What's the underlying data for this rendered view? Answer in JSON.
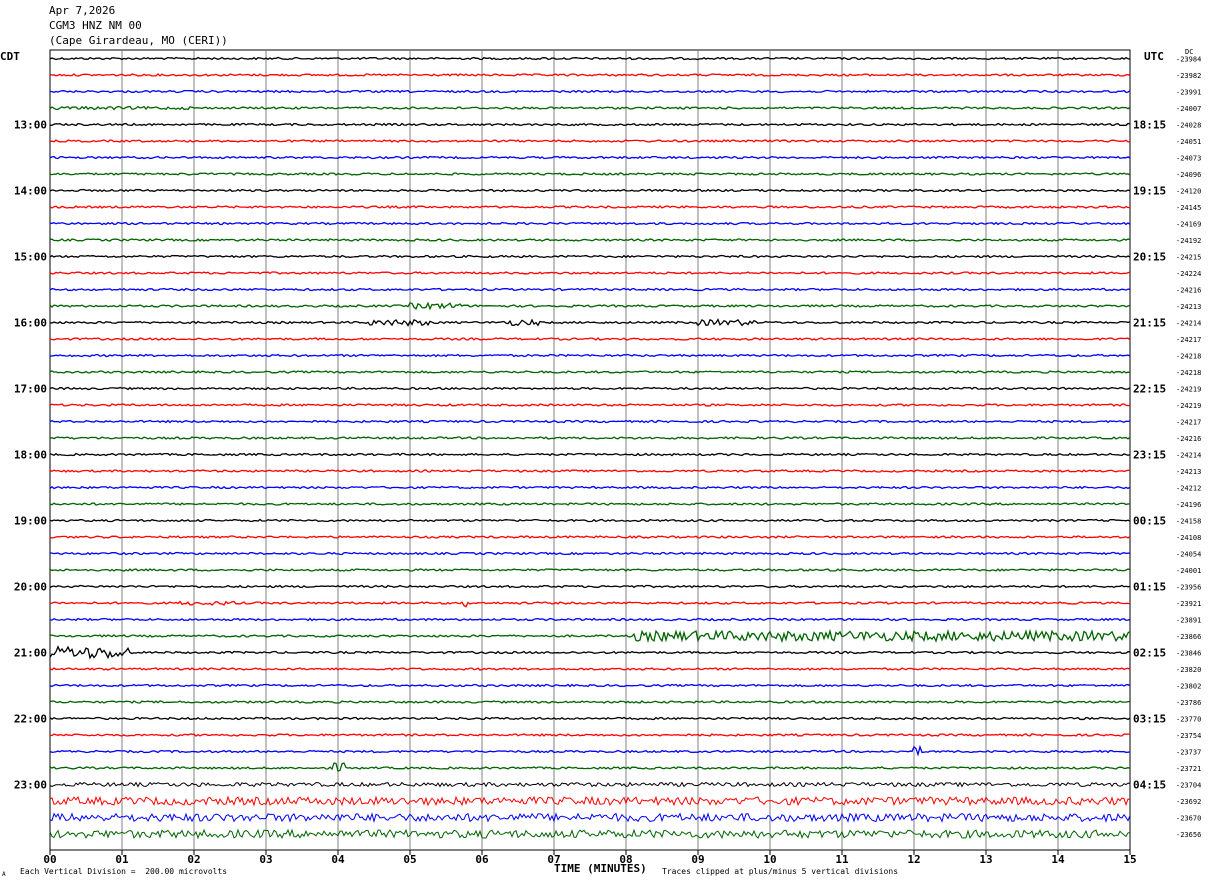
{
  "header": {
    "date": "Apr 7,2026",
    "station": "CGM3 HNZ NM 00",
    "location": "(Cape Girardeau, MO (CERI))"
  },
  "left_timezone": "CDT",
  "right_timezone": "UTC",
  "dc_label": "DC",
  "footer": {
    "scale_note": "Each Vertical Division =  200.00 microvolts",
    "x_title": "TIME (MINUTES)",
    "clip_note": "Traces clipped at plus/minus 5 vertical divisions",
    "corner_mark": "A"
  },
  "colors": {
    "trace_cycle": [
      "#000000",
      "#ff0000",
      "#0000ff",
      "#006400"
    ],
    "grid": "#808080"
  },
  "chart_data": {
    "type": "line",
    "title": "CGM3 HNZ NM 00",
    "xlabel": "TIME (MINUTES)",
    "xlim": [
      0,
      15
    ],
    "x_ticks": [
      "00",
      "01",
      "02",
      "03",
      "04",
      "05",
      "06",
      "07",
      "08",
      "09",
      "10",
      "11",
      "12",
      "13",
      "14",
      "15"
    ],
    "rows_per_hour": 4,
    "minutes_per_row": 15,
    "left_hour_labels": [
      "13:00",
      "14:00",
      "15:00",
      "16:00",
      "17:00",
      "18:00",
      "19:00",
      "20:00",
      "21:00",
      "22:00",
      "23:00"
    ],
    "right_hour_labels": [
      "18:15",
      "19:15",
      "20:15",
      "21:15",
      "22:15",
      "23:15",
      "00:15",
      "01:15",
      "02:15",
      "03:15",
      "04:15"
    ],
    "first_labeled_row": 4,
    "dc_offsets": [
      -23984,
      -23982,
      -23991,
      -24007,
      -24028,
      -24051,
      -24073,
      -24096,
      -24120,
      -24145,
      -24169,
      -24192,
      -24215,
      -24224,
      -24216,
      -24213,
      -24214,
      -24217,
      -24218,
      -24218,
      -24219,
      -24219,
      -24217,
      -24216,
      -24214,
      -24213,
      -24212,
      -24196,
      -24158,
      -24108,
      -24054,
      -24001,
      -23956,
      -23921,
      -23891,
      -23866,
      -23846,
      -23820,
      -23802,
      -23786,
      -23770,
      -23754,
      -23737,
      -23721,
      -23704,
      -23692,
      -23670,
      -23656
    ],
    "noise_amplitude": [
      1,
      1,
      1,
      1,
      1,
      1,
      1,
      1,
      1,
      1,
      1,
      1,
      1,
      1,
      1,
      1,
      1,
      1,
      1,
      1,
      1,
      1,
      1,
      1,
      1,
      1,
      1,
      1,
      1,
      1,
      1,
      1,
      1,
      1,
      1,
      1,
      1,
      1,
      1,
      1,
      1,
      1,
      1,
      1,
      2,
      4,
      4,
      4
    ],
    "events": [
      {
        "row": 3,
        "start": 0.0,
        "end": 2.0,
        "amp": 1.5
      },
      {
        "row": 15,
        "start": 5.0,
        "end": 5.7,
        "amp": 3
      },
      {
        "row": 16,
        "start": 4.4,
        "end": 5.3,
        "amp": 3
      },
      {
        "row": 16,
        "start": 6.3,
        "end": 6.8,
        "amp": 3
      },
      {
        "row": 16,
        "start": 9.0,
        "end": 9.8,
        "amp": 3
      },
      {
        "row": 33,
        "start": 1.8,
        "end": 2.6,
        "amp": 2
      },
      {
        "row": 33,
        "start": 5.7,
        "end": 5.8,
        "amp": 4
      },
      {
        "row": 35,
        "start": 8.1,
        "end": 15.0,
        "amp": 5
      },
      {
        "row": 36,
        "start": 0.0,
        "end": 1.1,
        "amp": 6
      },
      {
        "row": 42,
        "start": 12.0,
        "end": 12.1,
        "amp": 5
      },
      {
        "row": 43,
        "start": 3.9,
        "end": 4.1,
        "amp": 5
      }
    ]
  }
}
